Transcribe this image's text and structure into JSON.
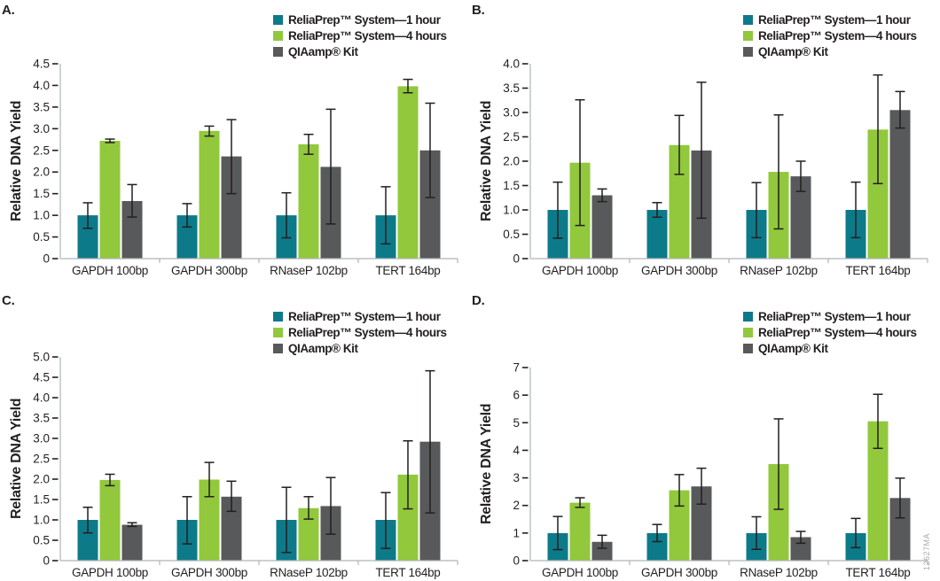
{
  "figure": {
    "watermark": "12627MA",
    "colors": {
      "series": [
        "#0d7a89",
        "#92c83c",
        "#58595b"
      ],
      "axis_line": "#b1b3b6",
      "error_bar": "#231f20",
      "text": "#231f20",
      "watermark": "#a8aaad"
    }
  },
  "legend": {
    "position": "top-right",
    "items": [
      {
        "label": "ReliaPrep™ System—1 hour",
        "color": "#0d7a89"
      },
      {
        "label": "ReliaPrep™ System—4 hours",
        "color": "#92c83c"
      },
      {
        "label": "QIAamp® Kit",
        "color": "#58595b"
      }
    ]
  },
  "chart_data": [
    {
      "panel": "A.",
      "type": "bar",
      "ylabel": "Relative DNA Yield",
      "xlabel": "",
      "ylim": [
        0,
        4.5
      ],
      "grid": false,
      "yticks": [
        "0",
        "0.5",
        "1.0",
        "1.5",
        "2.0",
        "2.5",
        "3.0",
        "3.5",
        "4.0",
        "4.5"
      ],
      "categories": [
        "GAPDH 100bp",
        "GAPDH 300bp",
        "RNaseP 102bp",
        "TERT 164bp"
      ],
      "series": [
        {
          "name": "ReliaPrep™ System—1 hour",
          "values": [
            1.0,
            1.0,
            1.0,
            1.0
          ],
          "err_lo": [
            0.7,
            0.73,
            0.48,
            0.34
          ],
          "err_hi": [
            1.29,
            1.27,
            1.52,
            1.66
          ]
        },
        {
          "name": "ReliaPrep™ System—4 hours",
          "values": [
            2.72,
            2.95,
            2.64,
            3.98
          ],
          "err_lo": [
            2.68,
            2.83,
            2.41,
            3.83
          ],
          "err_hi": [
            2.76,
            3.06,
            2.87,
            4.14
          ]
        },
        {
          "name": "QIAamp® Kit",
          "values": [
            1.33,
            2.36,
            2.12,
            2.5
          ],
          "err_lo": [
            0.96,
            1.5,
            0.8,
            1.41
          ],
          "err_hi": [
            1.71,
            3.21,
            3.45,
            3.59
          ]
        }
      ]
    },
    {
      "panel": "B.",
      "type": "bar",
      "ylabel": "Relative DNA Yield",
      "xlabel": "",
      "ylim": [
        0,
        4.0
      ],
      "grid": false,
      "yticks": [
        "0",
        "0.5",
        "1.0",
        "1.5",
        "2.0",
        "2.5",
        "3.0",
        "3.5",
        "4.0"
      ],
      "categories": [
        "GAPDH 100bp",
        "GAPDH 300bp",
        "RNaseP 102bp",
        "TERT 164bp"
      ],
      "series": [
        {
          "name": "ReliaPrep™ System—1 hour",
          "values": [
            1.0,
            1.0,
            1.0,
            1.0
          ],
          "err_lo": [
            0.42,
            0.85,
            0.43,
            0.43
          ],
          "err_hi": [
            1.57,
            1.15,
            1.56,
            1.57
          ]
        },
        {
          "name": "ReliaPrep™ System—4 hours",
          "values": [
            1.97,
            2.33,
            1.78,
            2.65
          ],
          "err_lo": [
            0.68,
            1.73,
            0.61,
            1.54
          ],
          "err_hi": [
            3.26,
            2.94,
            2.95,
            3.77
          ]
        },
        {
          "name": "QIAamp® Kit",
          "values": [
            1.3,
            2.22,
            1.69,
            3.05
          ],
          "err_lo": [
            1.17,
            0.83,
            1.38,
            2.68
          ],
          "err_hi": [
            1.43,
            3.62,
            2.0,
            3.43
          ]
        }
      ]
    },
    {
      "panel": "C.",
      "type": "bar",
      "ylabel": "Relative DNA Yield",
      "xlabel": "",
      "ylim": [
        0,
        5.0
      ],
      "grid": false,
      "yticks": [
        "0",
        "0.5",
        "1.0",
        "1.5",
        "2.0",
        "2.5",
        "3.0",
        "3.5",
        "4.0",
        "4.5",
        "5.0"
      ],
      "categories": [
        "GAPDH 100bp",
        "GAPDH 300bp",
        "RNaseP 102bp",
        "TERT 164bp"
      ],
      "series": [
        {
          "name": "ReliaPrep™ System—1 hour",
          "values": [
            1.0,
            1.0,
            1.0,
            1.0
          ],
          "err_lo": [
            0.68,
            0.41,
            0.2,
            0.3
          ],
          "err_hi": [
            1.31,
            1.57,
            1.8,
            1.67
          ]
        },
        {
          "name": "ReliaPrep™ System—4 hours",
          "values": [
            1.98,
            1.99,
            1.29,
            2.11
          ],
          "err_lo": [
            1.84,
            1.57,
            1.02,
            1.27
          ],
          "err_hi": [
            2.12,
            2.41,
            1.57,
            2.94
          ]
        },
        {
          "name": "QIAamp® Kit",
          "values": [
            0.88,
            1.57,
            1.34,
            2.92
          ],
          "err_lo": [
            0.84,
            1.21,
            0.65,
            1.17
          ],
          "err_hi": [
            0.93,
            1.95,
            2.04,
            4.66
          ]
        }
      ]
    },
    {
      "panel": "D.",
      "type": "bar",
      "ylabel": "Relative DNA Yield",
      "xlabel": "",
      "ylim": [
        0,
        7
      ],
      "grid": false,
      "yticks": [
        "0",
        "1",
        "2",
        "3",
        "4",
        "5",
        "6",
        "7"
      ],
      "categories": [
        "GAPDH 100bp",
        "GAPDH 300bp",
        "RNaseP 102bp",
        "TERT 164bp"
      ],
      "series": [
        {
          "name": "ReliaPrep™ System—1 hour",
          "values": [
            1.0,
            1.0,
            1.0,
            1.0
          ],
          "err_lo": [
            0.4,
            0.69,
            0.41,
            0.47
          ],
          "err_hi": [
            1.6,
            1.31,
            1.59,
            1.53
          ]
        },
        {
          "name": "ReliaPrep™ System—4 hours",
          "values": [
            2.1,
            2.55,
            3.5,
            5.05
          ],
          "err_lo": [
            1.93,
            1.98,
            1.86,
            4.07
          ],
          "err_hi": [
            2.28,
            3.12,
            5.14,
            6.03
          ]
        },
        {
          "name": "QIAamp® Kit",
          "values": [
            0.68,
            2.69,
            0.85,
            2.27
          ],
          "err_lo": [
            0.45,
            2.05,
            0.63,
            1.55
          ],
          "err_hi": [
            0.92,
            3.35,
            1.06,
            2.99
          ]
        }
      ]
    }
  ]
}
